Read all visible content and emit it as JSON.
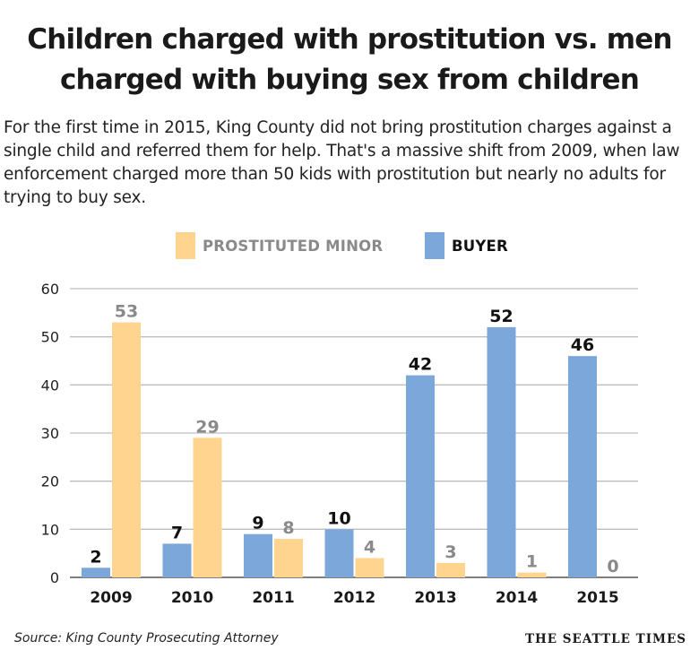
{
  "title": "Children charged with prostitution vs. men charged with buying sex from children",
  "subtitle": "For the first time in 2015, King County did not bring prostitution charges against a single child and referred them for help. That's a massive shift from 2009, when law enforcement charged more than 50 kids with prostitution but nearly no adults for trying to buy sex.",
  "source": "Source: King County Prosecuting Attorney",
  "brand": "THE SEATTLE TIMES",
  "colors": {
    "minor": "#FED48E",
    "buyer": "#7BA7DB",
    "minor_label": "#8a8a8a",
    "buyer_label": "#111111",
    "grid": "#bdbdbd"
  },
  "chart_data": {
    "type": "bar",
    "categories": [
      "2009",
      "2010",
      "2011",
      "2012",
      "2013",
      "2014",
      "2015"
    ],
    "series": [
      {
        "name": "BUYER",
        "values": [
          2,
          7,
          9,
          10,
          42,
          52,
          46
        ]
      },
      {
        "name": "PROSTITUTED MINOR",
        "values": [
          53,
          29,
          8,
          4,
          3,
          1,
          0
        ]
      }
    ],
    "legend": [
      "PROSTITUTED MINOR",
      "BUYER"
    ],
    "legend_position": "top-center",
    "y_ticks": [
      0,
      10,
      20,
      30,
      40,
      50,
      60
    ],
    "ylim": [
      0,
      60
    ],
    "grid": true
  }
}
